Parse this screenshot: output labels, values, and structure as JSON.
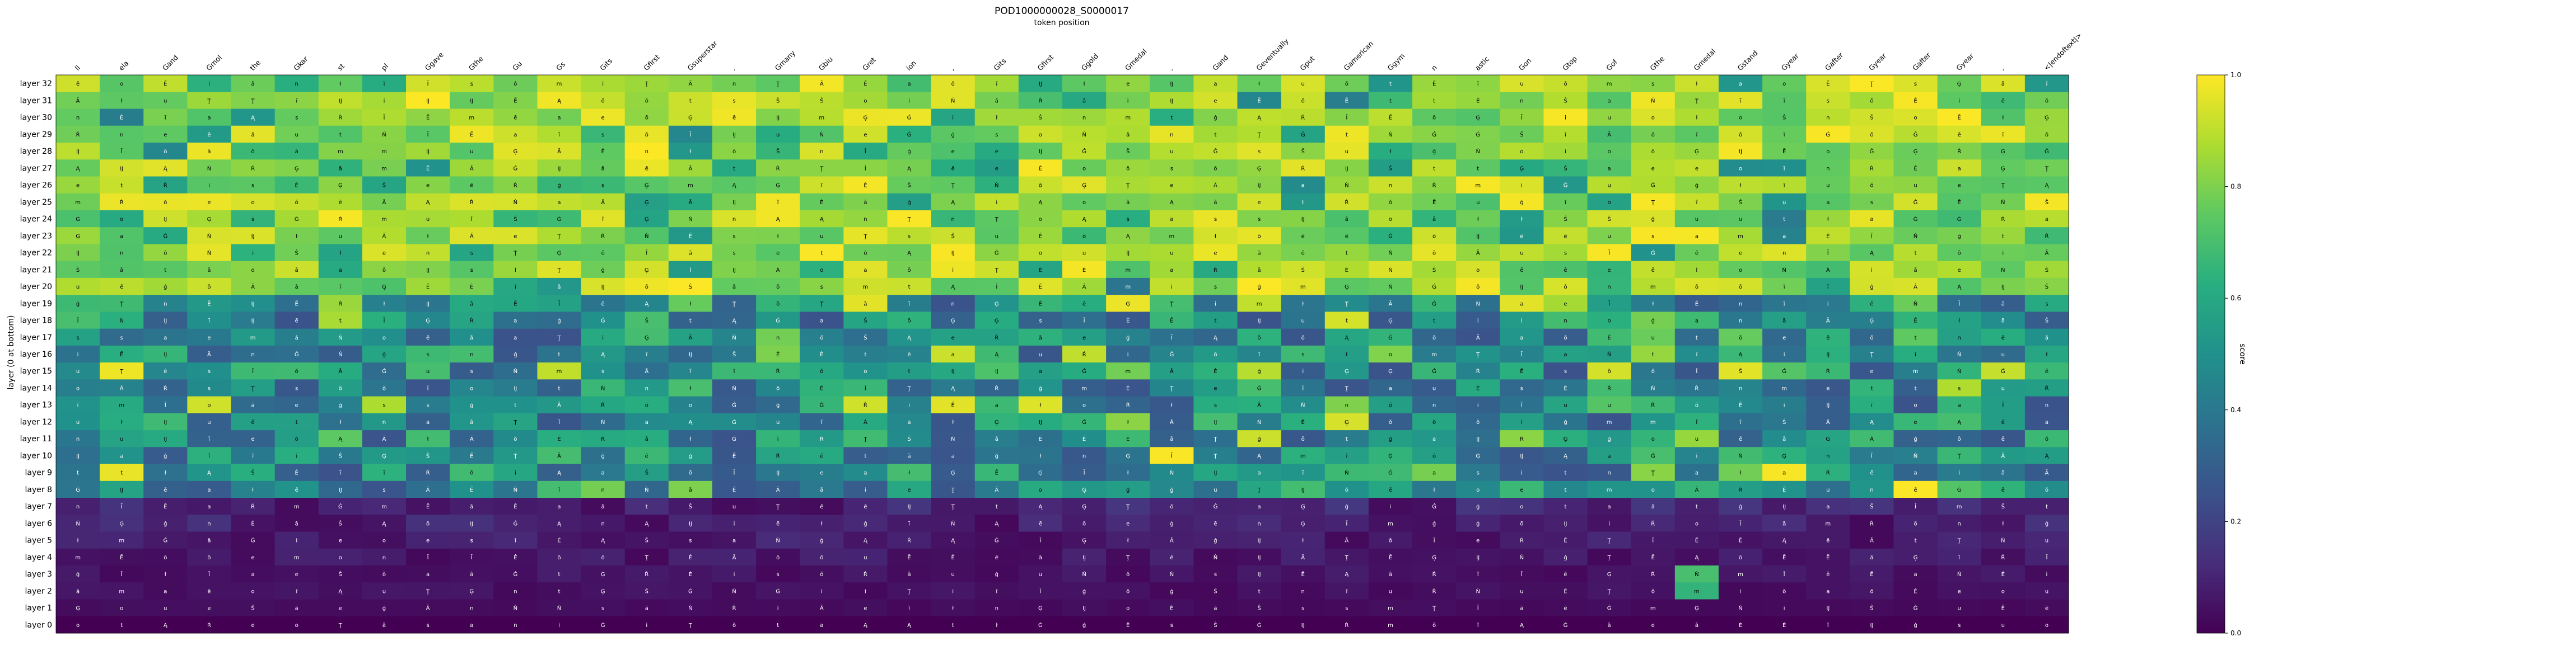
{
  "chart_data": {
    "type": "heatmap",
    "title": "POD1000000028_S0000017",
    "subtitle": "token position",
    "ylabel": "layer (0 at bottom)",
    "colorbar_label": "score",
    "colorbar_ticks": [
      0.0,
      0.2,
      0.4,
      0.6,
      0.8,
      1.0
    ],
    "colormap": "viridis",
    "vmin": 0.0,
    "vmax": 1.0,
    "tokens": [
      "li",
      "ela",
      "Gand",
      "Gmol",
      "the",
      "Gkar",
      "st",
      "pl",
      "Ggave",
      "Gthe",
      "Gu",
      "Gs",
      "Gits",
      "Gfirst",
      "Gsuperstar",
      ".",
      "Gmany",
      "Gbiu",
      "Gret",
      "ion",
      ",",
      "Gits",
      "Gfirst",
      "Ggold",
      "Gmedal",
      ".",
      "Gand",
      "Geventually",
      "Gput",
      "Gamerican",
      "Ggym",
      "n",
      "astic",
      "Gon",
      "Gtop",
      "Gof",
      "Gthe",
      "Gmedal",
      "Gstand",
      "Gyear",
      "Gafter",
      "Gyear",
      "Gafter",
      "Gyear",
      ".",
      "<|endoftext|>"
    ],
    "layers": [
      "layer 32",
      "layer 31",
      "layer 30",
      "layer 29",
      "layer 28",
      "layer 27",
      "layer 26",
      "layer 25",
      "layer 24",
      "layer 23",
      "layer 22",
      "layer 21",
      "layer 20",
      "layer 19",
      "layer 18",
      "layer 17",
      "layer 16",
      "layer 15",
      "layer 14",
      "layer 13",
      "layer 12",
      "layer 11",
      "layer 10",
      "layer 9",
      "layer 8",
      "layer 7",
      "layer 6",
      "layer 5",
      "layer 4",
      "layer 3",
      "layer 2",
      "layer 1",
      "layer 0"
    ],
    "cell_text_pool": [
      "Ē",
      "Ā",
      "Ė",
      "Ń",
      "Ģ",
      "ā",
      "ē",
      "Ą",
      "m",
      "a",
      "o",
      "i",
      "t",
      "e",
      "s",
      "n",
      "u",
      "ō",
      "ĩ",
      "Ĳ",
      "Ŕ",
      "ŏ",
      "Ŝ",
      "Ţ",
      "Ġ",
      "ģ",
      "Ī",
      "ł"
    ],
    "notes": "Dense grid (33 layers × 46 positions). Upper layers (≈20–32) mostly high scores (yellow), middle layers mixed green/teal, lower layers (0–7) low scores (purple)."
  }
}
